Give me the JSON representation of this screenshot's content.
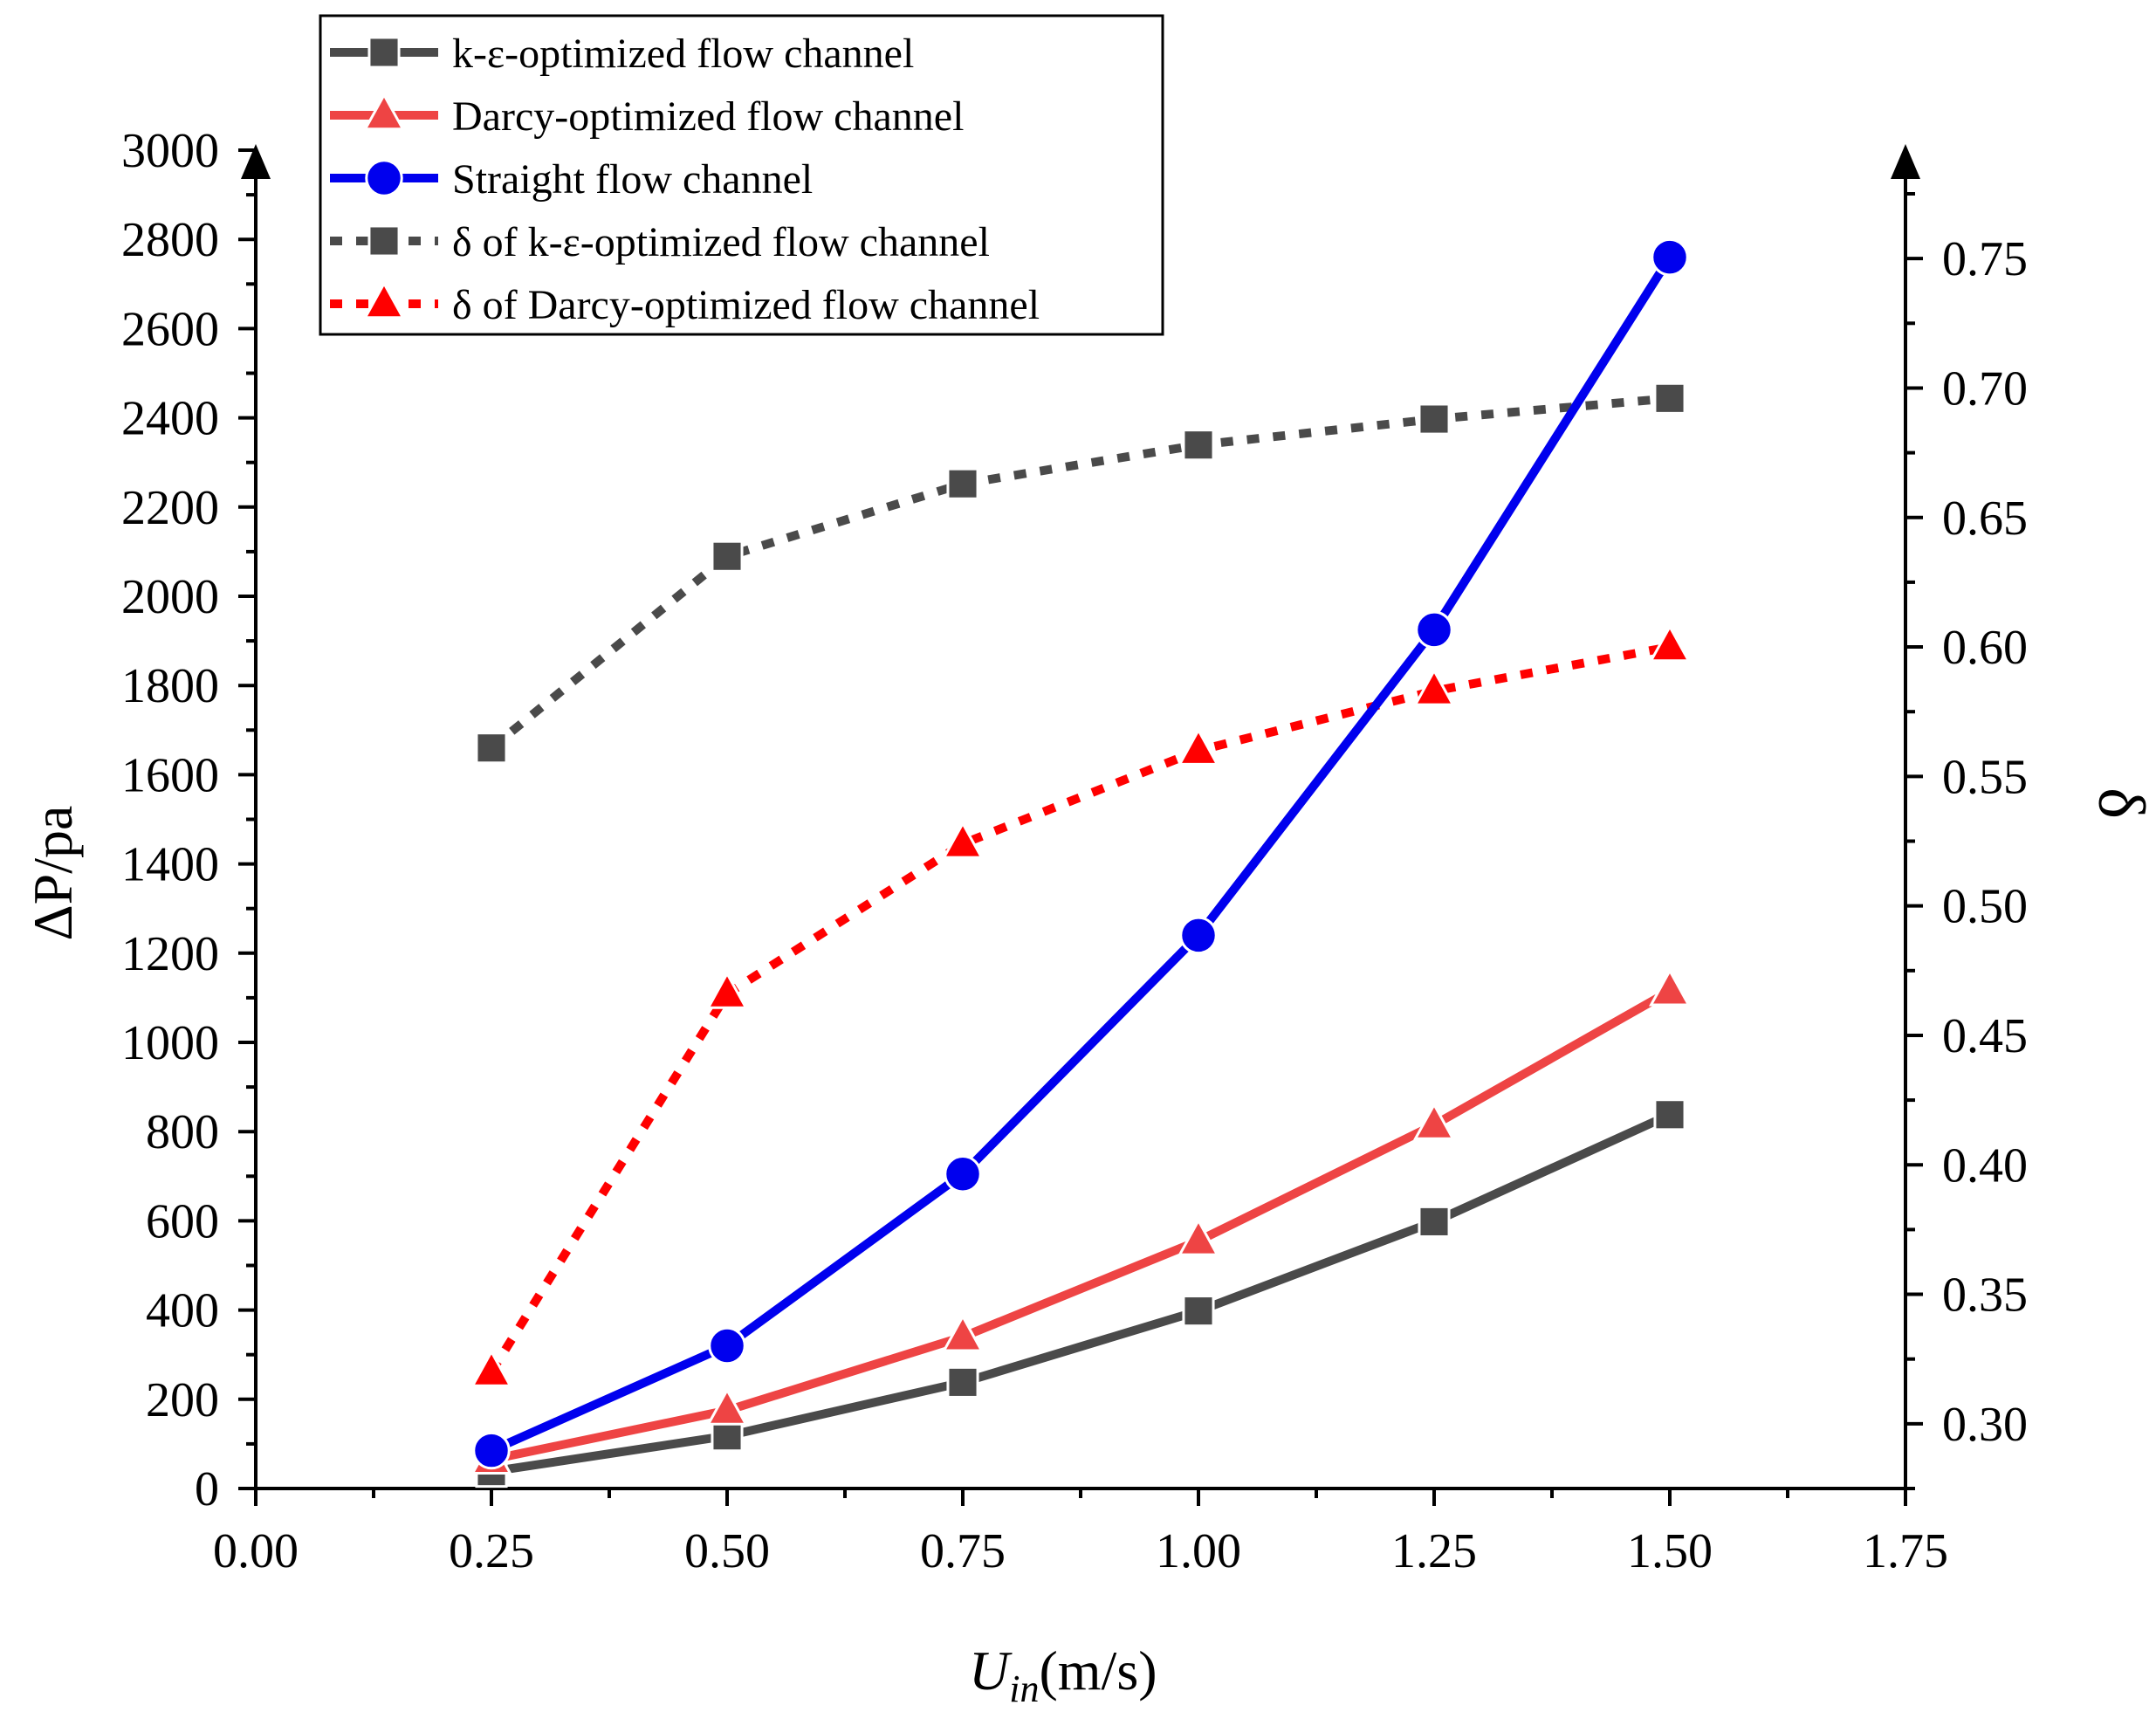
{
  "chart_data": {
    "type": "line",
    "x": [
      0.25,
      0.5,
      0.75,
      1.0,
      1.25,
      1.5
    ],
    "xlim": [
      0.0,
      1.75
    ],
    "x_ticks": [
      "0.00",
      "0.25",
      "0.50",
      "0.75",
      "1.00",
      "1.25",
      "1.50",
      "1.75"
    ],
    "ylim_left": [
      0,
      3000
    ],
    "y_left_ticks": [
      "0",
      "200",
      "400",
      "600",
      "800",
      "1000",
      "1200",
      "1400",
      "1600",
      "1800",
      "2000",
      "2200",
      "2400",
      "2600",
      "2800",
      "3000"
    ],
    "ylim_right": [
      0.275,
      0.775
    ],
    "y_right_ticks": [
      "0.30",
      "0.35",
      "0.40",
      "0.45",
      "0.50",
      "0.55",
      "0.60",
      "0.65",
      "0.70",
      "0.75"
    ],
    "xlabel_main": "U",
    "xlabel_sub": "in",
    "xlabel_unit": "(m/s)",
    "ylabel_left": "ΔP/pa",
    "ylabel_right": "δ",
    "grid": false,
    "legend_position": "top-left",
    "series": [
      {
        "name": "k-ε-optimized flow channel",
        "axis": "left",
        "marker": "square",
        "line": "solid",
        "color": "#4a4a4a",
        "values": [
          38,
          118,
          238,
          398,
          598,
          838
        ]
      },
      {
        "name": "Darcy-optimized flow channel",
        "axis": "left",
        "marker": "triangle",
        "line": "solid",
        "color": "#ee4444",
        "values": [
          65,
          175,
          340,
          555,
          815,
          1115
        ]
      },
      {
        "name": "Straight flow channel",
        "axis": "left",
        "marker": "circle",
        "line": "solid",
        "color": "#0000ee",
        "values": [
          85,
          320,
          705,
          1240,
          1925,
          2760
        ]
      },
      {
        "name": "δ of k-ε-optimized flow channel",
        "axis": "right",
        "marker": "square",
        "line": "dotted",
        "color": "#4a4a4a",
        "values": [
          0.561,
          0.635,
          0.663,
          0.678,
          0.688,
          0.696
        ]
      },
      {
        "name": "δ of Darcy-optimized flow channel",
        "axis": "right",
        "marker": "triangle",
        "line": "dotted",
        "color": "#ff0000",
        "values": [
          0.32,
          0.466,
          0.524,
          0.56,
          0.583,
          0.6
        ]
      }
    ]
  }
}
